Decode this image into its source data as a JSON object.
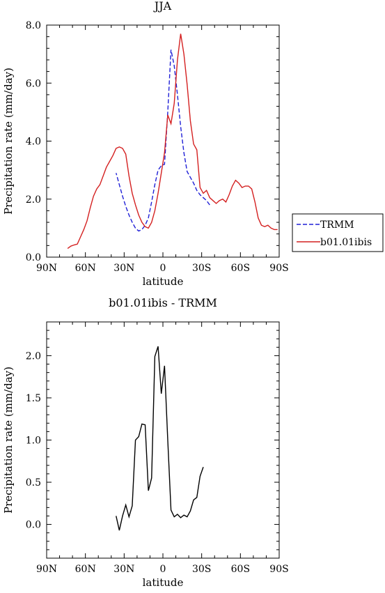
{
  "chart_data": [
    {
      "type": "line",
      "title": "JJA",
      "xlabel": "latitude",
      "ylabel": "Precipitation rate (mm/day)",
      "xlim": [
        90,
        -90
      ],
      "ylim": [
        0,
        8
      ],
      "x_ticks": [
        90,
        60,
        30,
        0,
        -30,
        -60,
        -90
      ],
      "x_tick_labels": [
        "90N",
        "60N",
        "30N",
        "0",
        "30S",
        "60S",
        "90S"
      ],
      "y_ticks": [
        0,
        2,
        4,
        6,
        8
      ],
      "y_tick_labels": [
        "0.0",
        "2.0",
        "4.0",
        "6.0",
        "8.0"
      ],
      "legend_position": "outside-right",
      "series": [
        {
          "name": "TRMM",
          "color": "#1f1fd6",
          "dash": "dashed",
          "points": [
            [
              -36.25,
              1.8
            ],
            [
              -33.75,
              1.95
            ],
            [
              -31.25,
              2.05
            ],
            [
              -28.75,
              2.15
            ],
            [
              -26.25,
              2.3
            ],
            [
              -23.75,
              2.55
            ],
            [
              -21.25,
              2.75
            ],
            [
              -18.75,
              2.95
            ],
            [
              -16.25,
              3.6
            ],
            [
              -13.75,
              4.5
            ],
            [
              -11.25,
              5.6
            ],
            [
              -8.75,
              6.6
            ],
            [
              -6.25,
              7.15
            ],
            [
              -3.75,
              5.0
            ],
            [
              -1.25,
              3.2
            ],
            [
              1.25,
              3.15
            ],
            [
              3.75,
              3.0
            ],
            [
              6.25,
              2.5
            ],
            [
              8.75,
              1.9
            ],
            [
              11.25,
              1.35
            ],
            [
              13.75,
              1.1
            ],
            [
              16.25,
              0.95
            ],
            [
              18.75,
              0.9
            ],
            [
              21.25,
              1.0
            ],
            [
              23.75,
              1.2
            ],
            [
              26.25,
              1.45
            ],
            [
              28.75,
              1.75
            ],
            [
              31.25,
              2.1
            ],
            [
              33.75,
              2.5
            ],
            [
              36.25,
              2.9
            ]
          ]
        },
        {
          "name": "b01.01ibis",
          "color": "#d42020",
          "dash": "solid",
          "points": [
            [
              -88.75,
              0.95
            ],
            [
              -86.25,
              0.95
            ],
            [
              -83.75,
              1.0
            ],
            [
              -81.25,
              1.1
            ],
            [
              -78.75,
              1.05
            ],
            [
              -76.25,
              1.1
            ],
            [
              -73.75,
              1.35
            ],
            [
              -71.25,
              1.9
            ],
            [
              -68.75,
              2.35
            ],
            [
              -66.25,
              2.45
            ],
            [
              -63.75,
              2.45
            ],
            [
              -61.25,
              2.4
            ],
            [
              -58.75,
              2.55
            ],
            [
              -56.25,
              2.65
            ],
            [
              -53.75,
              2.45
            ],
            [
              -51.25,
              2.15
            ],
            [
              -48.75,
              1.9
            ],
            [
              -46.25,
              2.0
            ],
            [
              -43.75,
              1.95
            ],
            [
              -41.25,
              1.85
            ],
            [
              -38.75,
              1.95
            ],
            [
              -36.25,
              2.05
            ],
            [
              -33.75,
              2.3
            ],
            [
              -31.25,
              2.2
            ],
            [
              -28.75,
              2.4
            ],
            [
              -26.25,
              3.7
            ],
            [
              -23.75,
              3.9
            ],
            [
              -21.25,
              4.7
            ],
            [
              -18.75,
              5.95
            ],
            [
              -16.25,
              7.0
            ],
            [
              -13.75,
              7.7
            ],
            [
              -11.25,
              6.8
            ],
            [
              -8.75,
              5.3
            ],
            [
              -6.25,
              4.6
            ],
            [
              -3.75,
              4.9
            ],
            [
              -1.25,
              3.6
            ],
            [
              1.25,
              2.9
            ],
            [
              3.75,
              2.2
            ],
            [
              6.25,
              1.6
            ],
            [
              8.75,
              1.2
            ],
            [
              11.25,
              1.0
            ],
            [
              13.75,
              1.05
            ],
            [
              16.25,
              1.2
            ],
            [
              18.75,
              1.45
            ],
            [
              21.25,
              1.8
            ],
            [
              23.75,
              2.2
            ],
            [
              26.25,
              2.8
            ],
            [
              28.75,
              3.55
            ],
            [
              31.25,
              3.75
            ],
            [
              33.75,
              3.8
            ],
            [
              36.25,
              3.75
            ],
            [
              38.75,
              3.5
            ],
            [
              41.25,
              3.3
            ],
            [
              43.75,
              3.1
            ],
            [
              46.25,
              2.8
            ],
            [
              48.75,
              2.5
            ],
            [
              51.25,
              2.35
            ],
            [
              53.75,
              2.1
            ],
            [
              56.25,
              1.7
            ],
            [
              58.75,
              1.25
            ],
            [
              61.25,
              0.95
            ],
            [
              63.75,
              0.7
            ],
            [
              66.25,
              0.45
            ],
            [
              68.75,
              0.42
            ],
            [
              71.25,
              0.38
            ],
            [
              73.75,
              0.3
            ]
          ]
        }
      ]
    },
    {
      "type": "line",
      "title": "b01.01ibis - TRMM",
      "xlabel": "latitude",
      "ylabel": "Precipitation rate (mm/day)",
      "xlim": [
        90,
        -90
      ],
      "ylim": [
        -0.4,
        2.4
      ],
      "x_ticks": [
        90,
        60,
        30,
        0,
        -30,
        -60,
        -90
      ],
      "x_tick_labels": [
        "90N",
        "60N",
        "30N",
        "0",
        "30S",
        "60S",
        "90S"
      ],
      "y_ticks": [
        0,
        0.5,
        1,
        1.5,
        2
      ],
      "y_tick_labels": [
        "0.0",
        "0.5",
        "1.0",
        "1.5",
        "2.0"
      ],
      "series": [
        {
          "color": "#000000",
          "dash": "solid",
          "points": [
            [
              36.25,
              0.1
            ],
            [
              33.75,
              -0.07
            ],
            [
              31.25,
              0.1
            ],
            [
              28.75,
              0.23
            ],
            [
              26.25,
              0.09
            ],
            [
              23.75,
              0.22
            ],
            [
              21.25,
              1.0
            ],
            [
              18.75,
              1.04
            ],
            [
              16.25,
              1.19
            ],
            [
              13.75,
              1.18
            ],
            [
              11.25,
              0.4
            ],
            [
              8.75,
              0.55
            ],
            [
              6.25,
              1.99
            ],
            [
              3.75,
              2.11
            ],
            [
              1.25,
              1.55
            ],
            [
              -1.25,
              1.88
            ],
            [
              -3.75,
              1.0
            ],
            [
              -6.25,
              0.17
            ],
            [
              -8.75,
              0.09
            ],
            [
              -11.25,
              0.12
            ],
            [
              -13.75,
              0.08
            ],
            [
              -16.25,
              0.11
            ],
            [
              -18.75,
              0.09
            ],
            [
              -21.25,
              0.16
            ],
            [
              -23.75,
              0.29
            ],
            [
              -26.25,
              0.32
            ],
            [
              -28.75,
              0.57
            ],
            [
              -31.25,
              0.68
            ]
          ]
        }
      ]
    }
  ]
}
